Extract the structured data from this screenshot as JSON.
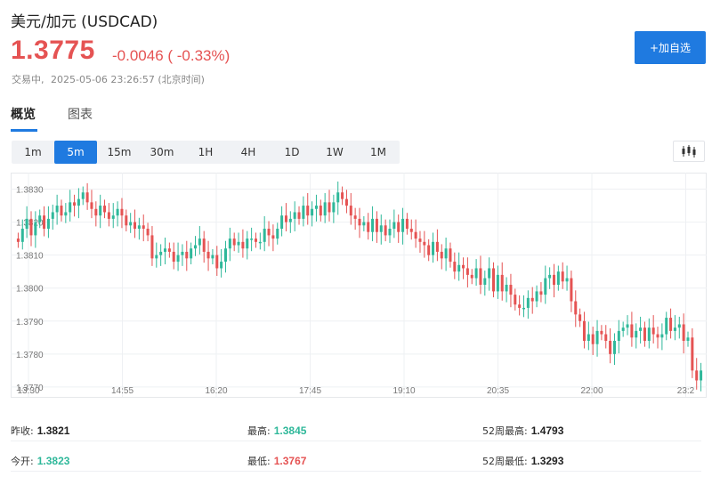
{
  "header": {
    "title": "美元/加元  (USDCAD)",
    "price": "1.3775",
    "change": "-0.0046 ( -0.33%)",
    "status_label": "交易中,",
    "timestamp": "2025-05-06 23:26:57",
    "timezone": "(北京时间)",
    "watch_button": "+加自选"
  },
  "tabs": [
    {
      "label": "概览",
      "active": true
    },
    {
      "label": "图表",
      "active": false
    }
  ],
  "periods": [
    {
      "label": "1m"
    },
    {
      "label": "5m",
      "active": true
    },
    {
      "label": "15m"
    },
    {
      "label": "30m"
    },
    {
      "label": "1H"
    },
    {
      "label": "4H"
    },
    {
      "label": "1D"
    },
    {
      "label": "1W"
    },
    {
      "label": "1M"
    }
  ],
  "chart_type_icon": "candlestick-chart-icon",
  "chart_data": {
    "type": "candlestick",
    "y_ticks": [
      "1.3830",
      "1.3820",
      "1.3810",
      "1.3800",
      "1.3790",
      "1.3780",
      "1.3770"
    ],
    "x_ticks": [
      "13:30",
      "14:55",
      "16:20",
      "17:45",
      "19:10",
      "20:35",
      "22:00",
      "23:2"
    ],
    "ylim": [
      1.3767,
      1.3835
    ],
    "up_color": "#2fb89a",
    "down_color": "#e55353",
    "grid": true,
    "closes": [
      1.3814,
      1.3818,
      1.3821,
      1.3816,
      1.382,
      1.3822,
      1.3818,
      1.3821,
      1.3823,
      1.3825,
      1.3822,
      1.3823,
      1.3826,
      1.3825,
      1.3827,
      1.3829,
      1.3826,
      1.3824,
      1.3822,
      1.3825,
      1.3823,
      1.3821,
      1.3822,
      1.3824,
      1.3822,
      1.3819,
      1.382,
      1.3818,
      1.3819,
      1.3818,
      1.3816,
      1.3809,
      1.381,
      1.3811,
      1.3812,
      1.3811,
      1.3808,
      1.381,
      1.3811,
      1.3809,
      1.3812,
      1.3813,
      1.3815,
      1.3811,
      1.3809,
      1.381,
      1.3806,
      1.3808,
      1.3812,
      1.3815,
      1.3813,
      1.3814,
      1.3812,
      1.3815,
      1.3815,
      1.3814,
      1.3814,
      1.3818,
      1.3816,
      1.3815,
      1.3818,
      1.3822,
      1.382,
      1.3821,
      1.3823,
      1.3821,
      1.3825,
      1.3822,
      1.3824,
      1.3825,
      1.3822,
      1.3826,
      1.3823,
      1.3826,
      1.3829,
      1.3827,
      1.3825,
      1.3822,
      1.3821,
      1.3819,
      1.382,
      1.3817,
      1.3821,
      1.3817,
      1.3819,
      1.3816,
      1.3818,
      1.382,
      1.3817,
      1.3821,
      1.3818,
      1.3817,
      1.3815,
      1.3814,
      1.3813,
      1.381,
      1.3814,
      1.3811,
      1.3809,
      1.3812,
      1.3808,
      1.3805,
      1.3807,
      1.3806,
      1.3804,
      1.3803,
      1.3806,
      1.3801,
      1.3803,
      1.3806,
      1.3799,
      1.3804,
      1.3799,
      1.3801,
      1.3798,
      1.3795,
      1.3794,
      1.3794,
      1.3797,
      1.3796,
      1.3799,
      1.3798,
      1.3803,
      1.3804,
      1.3801,
      1.3805,
      1.3802,
      1.3803,
      1.3796,
      1.3792,
      1.379,
      1.3784,
      1.3786,
      1.3783,
      1.3787,
      1.3786,
      1.3784,
      1.378,
      1.3784,
      1.3787,
      1.3788,
      1.3789,
      1.3785,
      1.3787,
      1.3788,
      1.3784,
      1.3788,
      1.3786,
      1.3785,
      1.3786,
      1.3791,
      1.3787,
      1.3788,
      1.3789,
      1.3784,
      1.3785,
      1.3775,
      1.3772,
      1.3775
    ]
  },
  "stats": [
    [
      {
        "label": "昨收:",
        "value": "1.3821",
        "tone": "neutral"
      },
      {
        "label": "最高:",
        "value": "1.3845",
        "tone": "up"
      },
      {
        "label": "52周最高:",
        "value": "1.4793",
        "tone": "neutral"
      }
    ],
    [
      {
        "label": "今开:",
        "value": "1.3823",
        "tone": "up"
      },
      {
        "label": "最低:",
        "value": "1.3767",
        "tone": "down"
      },
      {
        "label": "52周最低:",
        "value": "1.3293",
        "tone": "neutral"
      }
    ]
  ]
}
